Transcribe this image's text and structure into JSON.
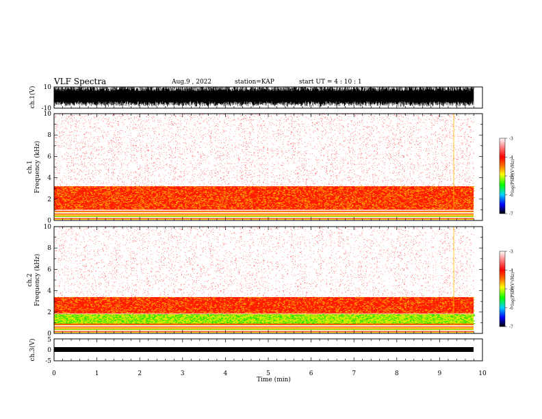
{
  "header": {
    "title": "VLF Spectra",
    "date": "Aug.9  , 2022",
    "station": "station=KAP",
    "start": "start  UT =   4 : 10 : 1"
  },
  "chart_data": [
    {
      "type": "line",
      "panel": "ch1-waveform",
      "ylabel": "ch.1(V)",
      "ylim": [
        -10,
        10
      ],
      "y_ticks": [
        "10",
        "-10"
      ],
      "xlim": [
        0,
        10
      ],
      "description_of_signal": "dense noisy waveform filling roughly -8 to +10 V between t=0 and ~9.8 min"
    },
    {
      "type": "heatmap",
      "panel": "ch1-spectrogram",
      "ylabel": "ch.1\nFrequency  (kHz)",
      "ylim": [
        0,
        10
      ],
      "y_ticks": [
        "0",
        "2",
        "4",
        "6",
        "8",
        "10"
      ],
      "xlim": [
        0,
        10
      ],
      "colorbar": {
        "label": "log(PSD)(V²/Hz)",
        "range": [
          -7,
          -3
        ],
        "ticks": [
          "-3",
          "-4",
          "-5",
          "-6",
          "-7"
        ]
      },
      "bands": [
        {
          "from_khz": 0,
          "to_khz": 1.0,
          "level": "mixed green/yellow lines"
        },
        {
          "from_khz": 1.0,
          "to_khz": 3.2,
          "level": -4.2
        },
        {
          "from_khz": 3.2,
          "to_khz": 10,
          "level": -3.6
        }
      ]
    },
    {
      "type": "heatmap",
      "panel": "ch2-spectrogram",
      "ylabel": "ch.2\nFrequency  (kHz)",
      "ylim": [
        0,
        10
      ],
      "y_ticks": [
        "0",
        "2",
        "4",
        "6",
        "8",
        "10"
      ],
      "xlim": [
        0,
        10
      ],
      "colorbar": {
        "label": "log(PSD)(V²/Hz)",
        "range": [
          -7,
          -3
        ],
        "ticks": [
          "-3",
          "-4",
          "-5",
          "-6",
          "-7"
        ]
      },
      "bands": [
        {
          "from_khz": 0,
          "to_khz": 0.8,
          "level": "mixed green/yellow lines"
        },
        {
          "from_khz": 0.8,
          "to_khz": 1.8,
          "level": -4.7
        },
        {
          "from_khz": 1.8,
          "to_khz": 3.2,
          "level": -4.1
        },
        {
          "from_khz": 3.2,
          "to_khz": 10,
          "level": -3.6
        }
      ]
    },
    {
      "type": "line",
      "panel": "ch3-waveform",
      "ylabel": "ch.3(V)",
      "ylim": [
        -5,
        5
      ],
      "y_ticks": [
        "5",
        "0",
        "-5"
      ],
      "xlim": [
        0,
        10
      ],
      "xlabel": "Time  (min)",
      "x_ticks": [
        "0",
        "1",
        "2",
        "3",
        "4",
        "5",
        "6",
        "7",
        "8",
        "9",
        "10"
      ],
      "description_of_signal": "narrow band around -1 V between t=0 and ~9.8 min"
    }
  ],
  "colors": {
    "axis": "#000000",
    "colormap": [
      "#ffffff",
      "#ff0000",
      "#ffff00",
      "#00ff00",
      "#00c0ff",
      "#0000ff",
      "#000000"
    ]
  }
}
